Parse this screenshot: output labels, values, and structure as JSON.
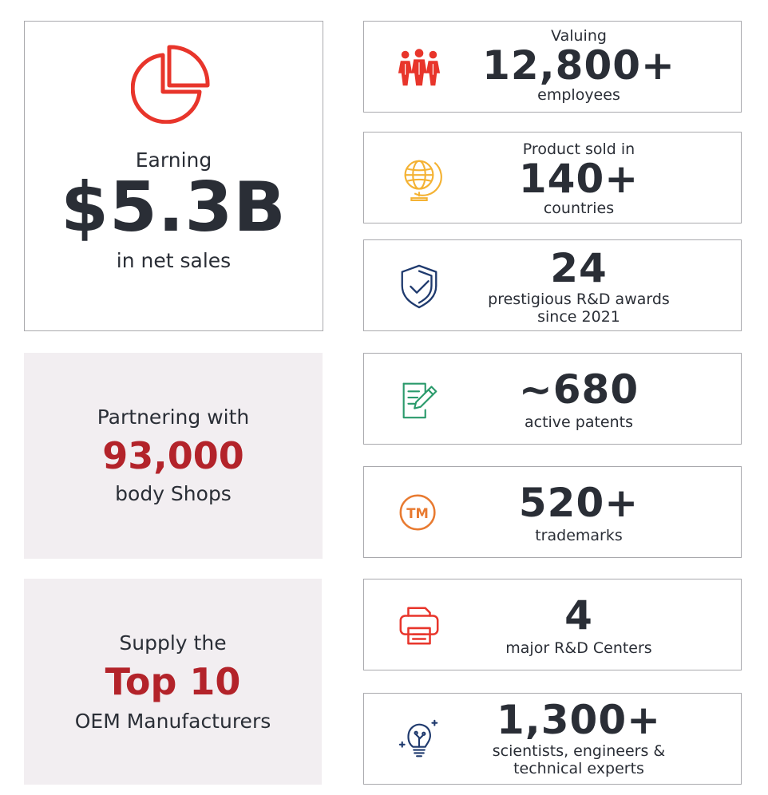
{
  "net_sales": {
    "icon": "pie-chart-icon",
    "label_top": "Earning",
    "value": "$5.3B",
    "label_bottom": "in net sales"
  },
  "body_shops": {
    "label_top": "Partnering with",
    "value": "93,000",
    "label_bottom": "body Shops"
  },
  "oem": {
    "label_top": "Supply the",
    "value": "Top 10",
    "label_bottom": "OEM Manufacturers"
  },
  "stats": {
    "employees": {
      "icon": "people-icon",
      "top": "Valuing",
      "value": "12,800+",
      "bottom": "employees"
    },
    "countries": {
      "icon": "globe-icon",
      "top": "Product sold in",
      "value": "140+",
      "bottom": "countries"
    },
    "awards": {
      "icon": "shield-check-icon",
      "value": "24",
      "bottom_line1": "prestigious R&D awards",
      "bottom_line2": "since 2021"
    },
    "patents": {
      "icon": "document-pen-icon",
      "value": "~680",
      "bottom": "active patents"
    },
    "trademarks": {
      "icon": "trademark-icon",
      "icon_text": "TM",
      "value": "520+",
      "bottom": "trademarks"
    },
    "rd_centers": {
      "icon": "printer-icon",
      "value": "4",
      "bottom": "major R&D Centers"
    },
    "experts": {
      "icon": "lightbulb-icon",
      "value": "1,300+",
      "bottom_line1": "scientists, engineers &",
      "bottom_line2": "technical experts"
    }
  },
  "colors": {
    "red": "#e8352b",
    "dark_red": "#b3232a",
    "text": "#2a2e36",
    "yellow": "#f4b233",
    "navy": "#1f3a6e",
    "green": "#2a9a6b",
    "orange": "#e87a30",
    "shaded_bg": "#f2eef1",
    "border": "#a9a9ad"
  }
}
